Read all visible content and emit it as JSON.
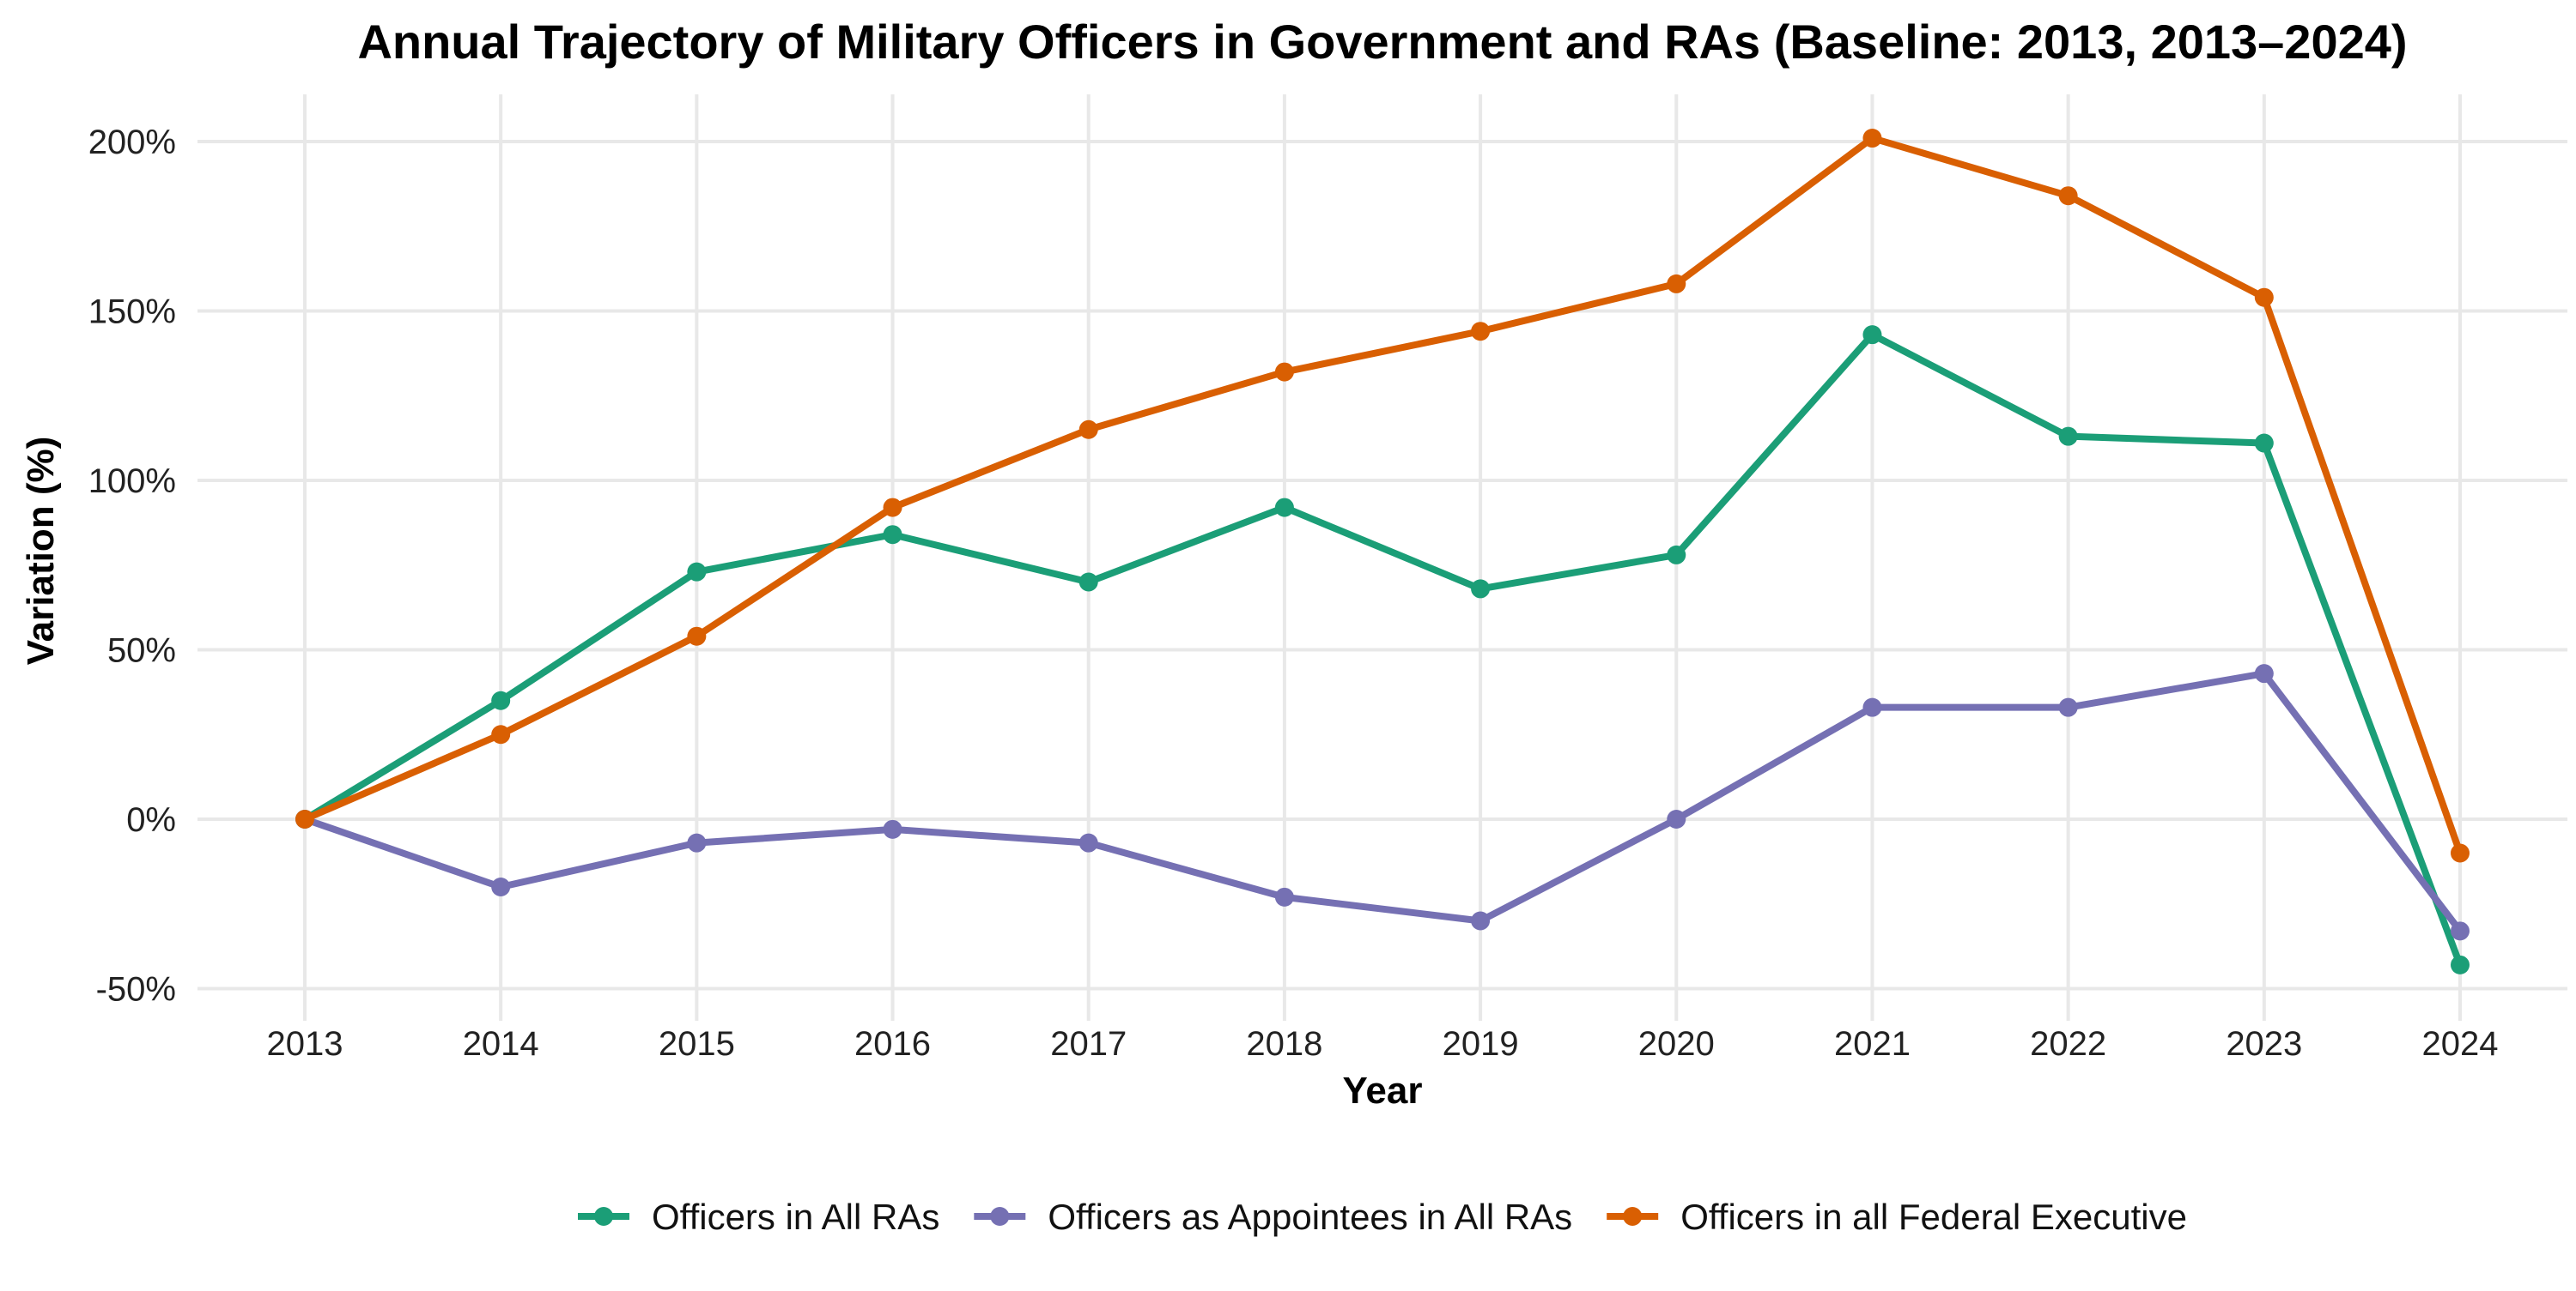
{
  "chart_data": {
    "type": "line",
    "title": "Annual Trajectory of Military Officers in Government and RAs (Baseline: 2013, 2013–2024)",
    "xlabel": "Year",
    "ylabel": "Variation (%)",
    "x": [
      2013,
      2014,
      2015,
      2016,
      2017,
      2018,
      2019,
      2020,
      2021,
      2022,
      2023,
      2024
    ],
    "x_ticks": [
      "2013",
      "2014",
      "2015",
      "2016",
      "2017",
      "2018",
      "2019",
      "2020",
      "2021",
      "2022",
      "2023",
      "2024"
    ],
    "ylim": [
      -50,
      200
    ],
    "y_ticks": [
      -50,
      0,
      50,
      100,
      150,
      200
    ],
    "y_tick_labels": [
      "-50%",
      "0%",
      "50%",
      "100%",
      "150%",
      "200%"
    ],
    "grid": true,
    "legend_position": "bottom",
    "series": [
      {
        "name": "Officers in All RAs",
        "color": "#1b9e77",
        "values": [
          0,
          35,
          73,
          84,
          70,
          92,
          68,
          78,
          143,
          113,
          111,
          -43
        ]
      },
      {
        "name": "Officers as Appointees in All RAs",
        "color": "#7570b3",
        "values": [
          0,
          -20,
          -7,
          -3,
          -7,
          -23,
          -30,
          0,
          33,
          33,
          43,
          -33
        ]
      },
      {
        "name": "Officers in all Federal Executive",
        "color": "#d95f02",
        "values": [
          0,
          25,
          54,
          92,
          115,
          132,
          144,
          158,
          201,
          184,
          154,
          -10
        ]
      }
    ]
  }
}
